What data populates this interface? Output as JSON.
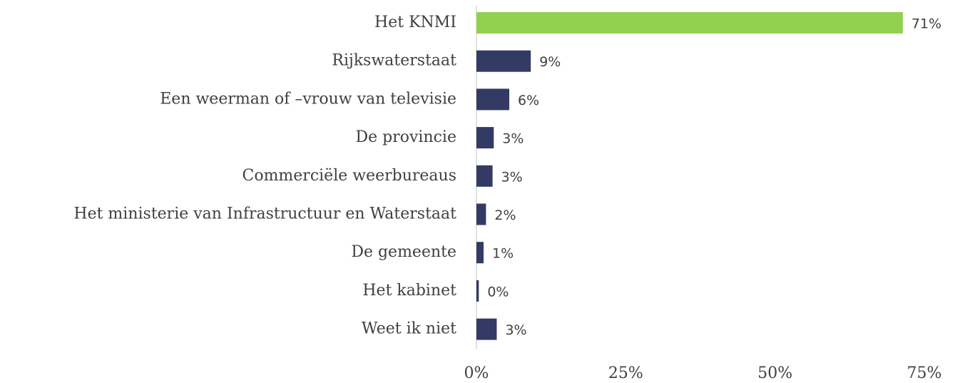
{
  "chart_data": {
    "type": "bar",
    "orientation": "horizontal",
    "categories": [
      "Het KNMI",
      "Rijkswaterstaat",
      "Een weerman of –vrouw van televisie",
      "De provincie",
      "Commerciële weerbureaus",
      "Het ministerie van Infrastructuur en Waterstaat",
      "De gemeente",
      "Het kabinet",
      "Weet ik niet"
    ],
    "values": [
      71.4,
      9.1,
      5.5,
      2.9,
      2.7,
      1.6,
      1.2,
      0.4,
      3.4
    ],
    "value_labels": [
      "71%",
      "9%",
      "6%",
      "3%",
      "3%",
      "2%",
      "1%",
      "0%",
      "3%"
    ],
    "colors": [
      "#92d050",
      "#333a63",
      "#333a63",
      "#333a63",
      "#333a63",
      "#333a63",
      "#333a63",
      "#333a63",
      "#333a63"
    ],
    "xlim": [
      0,
      75
    ],
    "xticks": [
      {
        "value": 0,
        "label": "0%"
      },
      {
        "value": 25,
        "label": "25%"
      },
      {
        "value": 50,
        "label": "50%"
      },
      {
        "value": 75,
        "label": "75%"
      }
    ]
  }
}
